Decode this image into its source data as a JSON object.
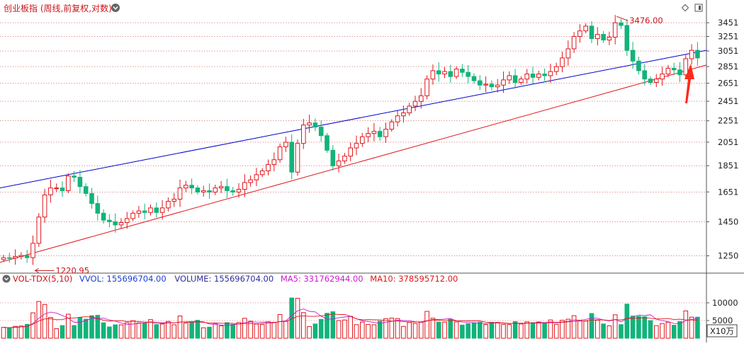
{
  "header": {
    "title": "创业板指 (周线,前复权,对数)"
  },
  "chart_data": [
    {
      "type": "candlestick",
      "title": "创业板指 (周线,前复权,对数)",
      "scale": "log",
      "ylim": [
        1170,
        3560
      ],
      "yticks": [
        1250,
        1450,
        1651,
        1851,
        2051,
        2251,
        2451,
        2651,
        2851,
        3051,
        3251,
        3451
      ],
      "grid": true,
      "annotations": {
        "low_label": "1220.95",
        "high_label": "3476.00"
      },
      "colors": {
        "up": "#e0161b",
        "down": "#12b37a",
        "upper_trendline": "#0000cc",
        "lower_trendline": "#e0161b",
        "arrow": "#ff2a1a"
      },
      "trendlines": [
        {
          "from": [
            0,
            1680
          ],
          "to": [
            104,
            3060
          ]
        },
        {
          "from": [
            0,
            1215
          ],
          "to": [
            104,
            2870
          ]
        }
      ],
      "close": [
        1240,
        1238,
        1246,
        1252,
        1240,
        1320,
        1480,
        1630,
        1680,
        1680,
        1660,
        1770,
        1760,
        1690,
        1640,
        1570,
        1505,
        1460,
        1450,
        1430,
        1445,
        1470,
        1505,
        1520,
        1510,
        1540,
        1510,
        1540,
        1585,
        1600,
        1680,
        1700,
        1680,
        1650,
        1660,
        1650,
        1680,
        1690,
        1660,
        1650,
        1670,
        1720,
        1740,
        1780,
        1810,
        1860,
        1900,
        2010,
        2050,
        1800,
        2040,
        2210,
        2230,
        2190,
        2110,
        1980,
        1850,
        1890,
        1930,
        2000,
        2040,
        2100,
        2130,
        2150,
        2100,
        2170,
        2240,
        2300,
        2330,
        2400,
        2450,
        2510,
        2700,
        2800,
        2760,
        2790,
        2730,
        2820,
        2780,
        2730,
        2680,
        2630,
        2640,
        2610,
        2630,
        2690,
        2740,
        2660,
        2700,
        2760,
        2720,
        2760,
        2740,
        2790,
        2850,
        2960,
        3080,
        3250,
        3330,
        3400,
        3220,
        3280,
        3200,
        3240,
        3450,
        3410,
        3060,
        2920,
        2800,
        2700,
        2660,
        2700,
        2760,
        2830,
        2810,
        2750,
        2950,
        3060,
        2960
      ],
      "open": [
        1230,
        1240,
        1238,
        1246,
        1252,
        1240,
        1320,
        1480,
        1630,
        1680,
        1680,
        1660,
        1770,
        1760,
        1690,
        1640,
        1570,
        1505,
        1460,
        1450,
        1430,
        1445,
        1470,
        1505,
        1520,
        1510,
        1540,
        1510,
        1540,
        1585,
        1600,
        1680,
        1700,
        1680,
        1650,
        1660,
        1650,
        1680,
        1690,
        1660,
        1650,
        1670,
        1720,
        1740,
        1780,
        1810,
        1860,
        1900,
        2010,
        2050,
        1800,
        2040,
        2210,
        2230,
        2190,
        2110,
        1980,
        1850,
        1890,
        1930,
        2000,
        2040,
        2100,
        2130,
        2150,
        2100,
        2170,
        2240,
        2300,
        2330,
        2400,
        2450,
        2510,
        2700,
        2800,
        2760,
        2790,
        2730,
        2820,
        2780,
        2730,
        2680,
        2630,
        2640,
        2610,
        2630,
        2690,
        2740,
        2660,
        2700,
        2760,
        2720,
        2760,
        2740,
        2790,
        2850,
        2960,
        3080,
        3250,
        3330,
        3400,
        3220,
        3280,
        3200,
        3240,
        3450,
        3410,
        3060,
        2920,
        2800,
        2700,
        2660,
        2700,
        2760,
        2830,
        2810,
        2750,
        2950,
        3060
      ]
    },
    {
      "type": "bar",
      "title": "VOL-TDX(5,10)",
      "unit_label": "X10万",
      "ylim": [
        0,
        14000
      ],
      "yticks": [
        5000,
        10000
      ],
      "readout": [
        {
          "label": "VVOL",
          "value": "155696704.00",
          "color": "#1f3fd0"
        },
        {
          "label": "VOLUME",
          "value": "155696704.00",
          "color": "#2f2f9a"
        },
        {
          "label": "MA5",
          "value": "331762944.00",
          "color": "#c81ec8"
        },
        {
          "label": "MA10",
          "value": "378595712.00",
          "color": "#e0161b"
        }
      ],
      "series": [
        {
          "name": "MA5"
        },
        {
          "name": "MA10"
        }
      ]
    }
  ]
}
